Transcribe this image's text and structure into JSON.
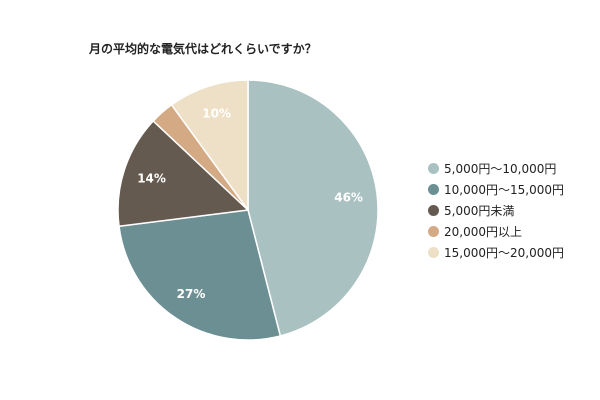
{
  "chart_data": {
    "type": "pie",
    "title": "月の平均的な電気代はどれくらいですか？",
    "legend_position": "right",
    "slices": [
      {
        "label": "5,000円～10,000円",
        "value": 46,
        "value_label": "46%",
        "color": "#aac1c1"
      },
      {
        "label": "10,000円～15,000円",
        "value": 27,
        "value_label": "27%",
        "color": "#6c8f93"
      },
      {
        "label": "5,000円未満",
        "value": 14,
        "value_label": "14%",
        "color": "#655a4f"
      },
      {
        "label": "20,000円以上",
        "value": 3,
        "value_label": "",
        "color": "#d3aa84"
      },
      {
        "label": "15,000円～20,000円",
        "value": 10,
        "value_label": "10%",
        "color": "#eee0c6"
      }
    ]
  }
}
